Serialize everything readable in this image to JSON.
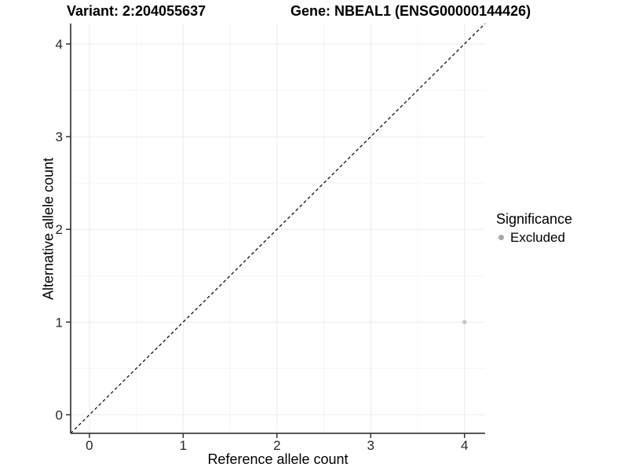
{
  "chart_data": {
    "type": "scatter",
    "title_left": "Variant: 2:204055637",
    "title_right": "Gene: NBEAL1 (ENSG00000144426)",
    "xlabel": "Reference allele count",
    "ylabel": "Alternative allele count",
    "xlim": [
      -0.2,
      4.22
    ],
    "ylim": [
      -0.2,
      4.22
    ],
    "x_ticks": [
      0,
      1,
      2,
      3,
      4
    ],
    "y_ticks": [
      0,
      1,
      2,
      3,
      4
    ],
    "x_minor": [
      0.5,
      1.5,
      2.5,
      3.5
    ],
    "y_minor": [
      0.5,
      1.5,
      2.5,
      3.5
    ],
    "grid": "major+minor",
    "reference_line": {
      "kind": "identity",
      "slope": 1,
      "intercept": 0,
      "style": "dashed",
      "color": "#000000"
    },
    "series": [
      {
        "name": "Excluded",
        "color": "#c6c6c6",
        "point_radius": 2.7,
        "points": [
          {
            "x": 4,
            "y": 1
          }
        ]
      }
    ],
    "legend": {
      "title": "Significance",
      "position": "right",
      "entries": [
        {
          "label": "Excluded",
          "dot_color": "#a8a8a8"
        }
      ]
    },
    "colors": {
      "background": "#ffffff",
      "grid_major": "#ebebeb",
      "grid_minor": "#f4f4f4",
      "axis_line": "#404040",
      "tick_mark": "#333333",
      "tick_text": "#262626",
      "text": "#000000"
    }
  }
}
